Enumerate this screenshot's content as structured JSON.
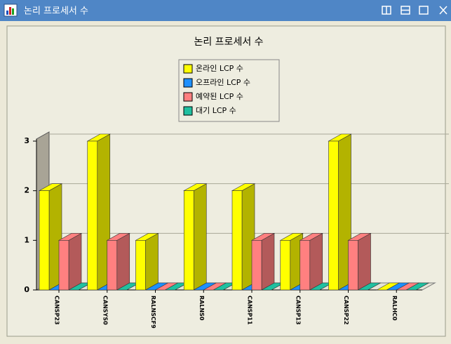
{
  "window": {
    "title": "논리 프로세서 수"
  },
  "chart_data": {
    "type": "bar3d",
    "title": "논리 프로세서 수",
    "categories": [
      "CANSP23",
      "CANSYS0",
      "RALNSCF9",
      "RALNS0",
      "CANSP11",
      "CANSP13",
      "CANSP22",
      "RALHC0"
    ],
    "series": [
      {
        "name": "온라인 LCP 수",
        "color": "#ffff00",
        "values": [
          2,
          3,
          1,
          2,
          2,
          1,
          3,
          0
        ]
      },
      {
        "name": "오프라인 LCP 수",
        "color": "#1e90ff",
        "values": [
          0,
          0,
          0,
          0,
          0,
          0,
          0,
          0
        ]
      },
      {
        "name": "예약된 LCP 수",
        "color": "#ff8080",
        "values": [
          1,
          1,
          0,
          0,
          1,
          1,
          1,
          0
        ]
      },
      {
        "name": "대기 LCP 수",
        "color": "#20c0a0",
        "values": [
          0,
          0,
          0,
          0,
          0,
          0,
          0,
          0
        ]
      }
    ],
    "ylim": [
      0,
      3
    ],
    "yticks": [
      0,
      1,
      2,
      3
    ],
    "grid": true
  }
}
